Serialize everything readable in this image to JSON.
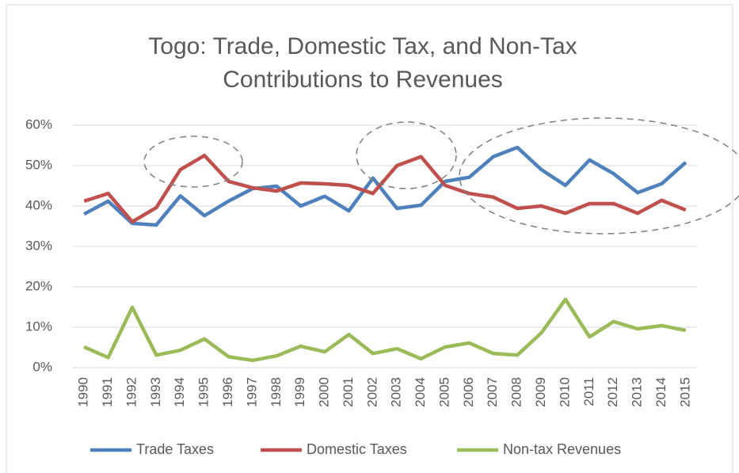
{
  "chart_data": {
    "type": "line",
    "title": [
      "Togo: Trade, Domestic Tax, and Non-Tax",
      "Contributions to Revenues"
    ],
    "categories": [
      "1990",
      "1991",
      "1992",
      "1993",
      "1994",
      "1995",
      "1996",
      "1997",
      "1998",
      "1999",
      "2000",
      "2001",
      "2002",
      "2003",
      "2004",
      "2005",
      "2006",
      "2007",
      "2008",
      "2009",
      "2010",
      "2011",
      "2012",
      "2013",
      "2014",
      "2015"
    ],
    "series": [
      {
        "name": "Trade Taxes",
        "color": "#4f81bd",
        "values": [
          38.0,
          41.2,
          35.7,
          35.3,
          42.5,
          37.6,
          41.2,
          44.3,
          44.9,
          40.0,
          42.4,
          38.8,
          46.9,
          39.4,
          40.2,
          46.1,
          47.1,
          52.2,
          54.5,
          49.0,
          45.1,
          51.4,
          48.0,
          43.3,
          45.5,
          50.8
        ]
      },
      {
        "name": "Domestic Taxes",
        "color": "#c0504d",
        "values": [
          41.2,
          43.1,
          36.1,
          39.6,
          49.0,
          52.5,
          46.1,
          44.5,
          43.7,
          45.7,
          45.5,
          45.1,
          43.1,
          50.0,
          52.2,
          45.1,
          43.1,
          42.2,
          39.4,
          40.0,
          38.2,
          40.6,
          40.6,
          38.2,
          41.4,
          39.0
        ]
      },
      {
        "name": "Non-tax Revenues",
        "color": "#9bbb59",
        "values": [
          5.1,
          2.5,
          14.9,
          3.1,
          4.3,
          7.1,
          2.7,
          1.8,
          2.9,
          5.3,
          3.9,
          8.2,
          3.5,
          4.7,
          2.2,
          5.1,
          6.1,
          3.5,
          3.1,
          8.6,
          16.9,
          7.6,
          11.4,
          9.6,
          10.4,
          9.2
        ]
      }
    ],
    "ylim": [
      0,
      60
    ],
    "yticks": [
      {
        "value": 0,
        "label": "0%"
      },
      {
        "value": 10,
        "label": "10%"
      },
      {
        "value": 20,
        "label": "20%"
      },
      {
        "value": 30,
        "label": "30%"
      },
      {
        "value": 40,
        "label": "40%"
      },
      {
        "value": 50,
        "label": "50%"
      },
      {
        "value": 60,
        "label": "60%"
      }
    ],
    "grid": true,
    "legend": "bottom"
  }
}
